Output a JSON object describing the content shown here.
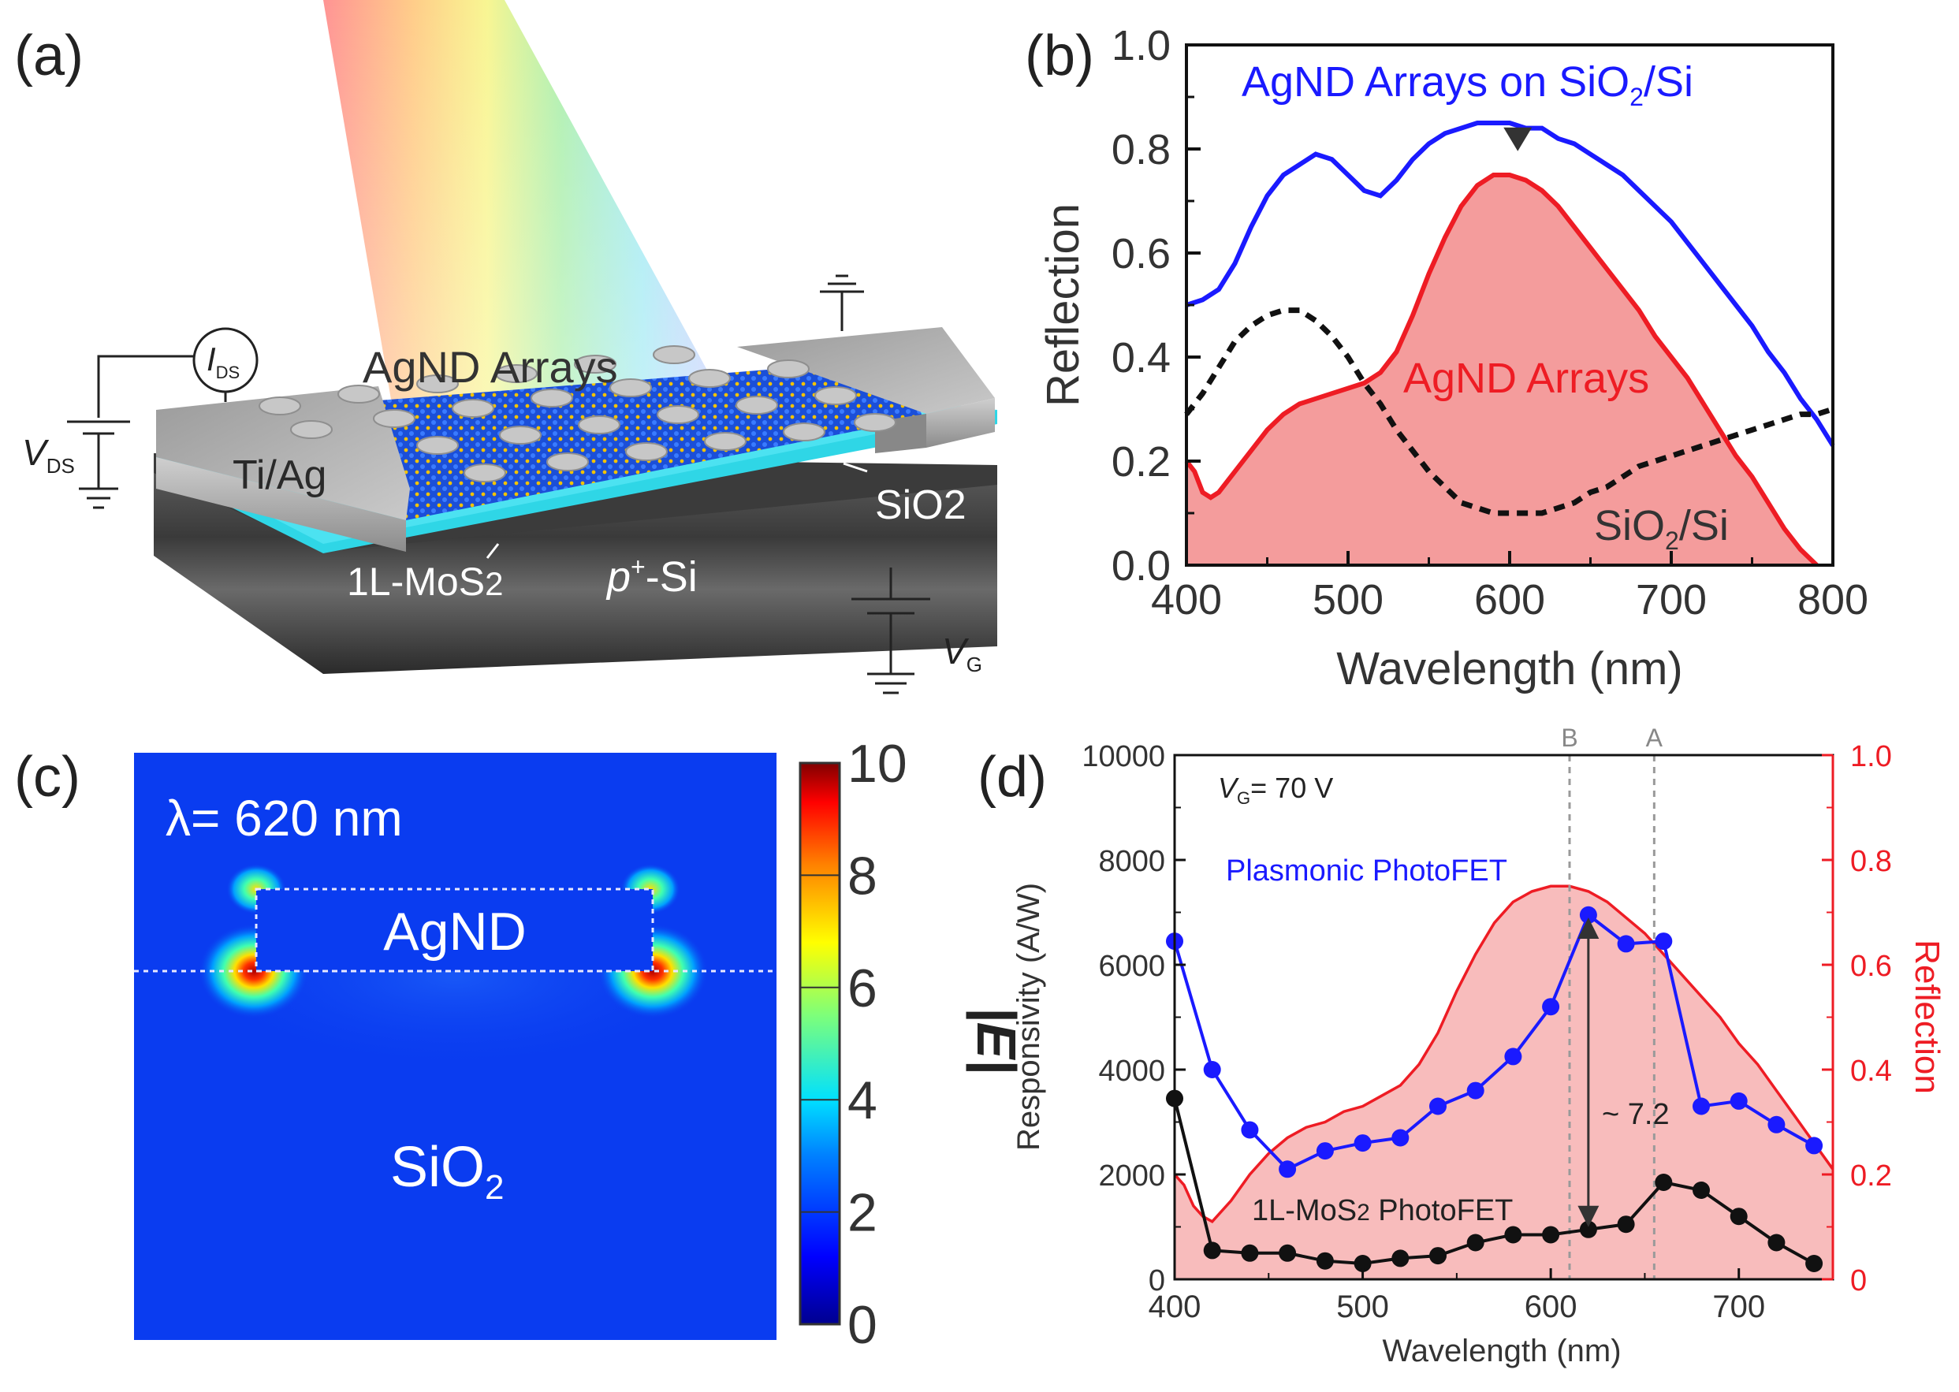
{
  "colors": {
    "blue": "#1a1aff",
    "red": "#ee1c24",
    "red_fill": "#f28b8b",
    "red_fill_light": "#f7b5b5",
    "black": "#111111",
    "cyan": "#2fd6e6",
    "gray_guide": "#9a9a9a"
  },
  "panel_a": {
    "label": "(a)",
    "ag_arrays": "AgND Arrays",
    "ids_label": "I",
    "ids_sub": "DS",
    "vds_label": "V",
    "vds_sub": "DS",
    "tiag": "Ti/Ag",
    "sio2_pre": "SiO",
    "sio2_sub": "2",
    "mos2_pre": "1L-MoS",
    "mos2_sub": "2",
    "psi_p": "p",
    "psi_sup": "+",
    "psi_si": "-Si",
    "vg_label": "V",
    "vg_sub": "G"
  },
  "panel_c": {
    "label": "(c)",
    "lambda_text": "λ= 620 nm",
    "agnd": "AgND",
    "sio2_pre": "SiO",
    "sio2_sub": "2",
    "colorbar_title": "|E|",
    "colorbar_ticks": [
      "0",
      "2",
      "4",
      "6",
      "8",
      "10"
    ]
  },
  "chart_data": [
    {
      "id": "b",
      "panel_label": "(b)",
      "type": "line",
      "xlabel": "Wavelength (nm)",
      "ylabel": "Reflection",
      "xlim": [
        400,
        800
      ],
      "ylim": [
        0.0,
        1.0
      ],
      "xticks": [
        "400",
        "500",
        "600",
        "700",
        "800"
      ],
      "yticks": [
        "0.0",
        "0.2",
        "0.4",
        "0.6",
        "0.8",
        "1.0"
      ],
      "annotations": {
        "blue_pre": "AgND Arrays on SiO",
        "blue_sub": "2",
        "blue_post": "/Si",
        "red": "AgND Arrays",
        "black_pre": "SiO",
        "black_sub": "2",
        "black_post": "/Si"
      },
      "series": [
        {
          "name": "AgND Arrays on SiO2/Si",
          "style": "blue-solid",
          "x": [
            400,
            410,
            420,
            430,
            440,
            450,
            460,
            470,
            480,
            490,
            500,
            510,
            520,
            530,
            540,
            550,
            560,
            570,
            580,
            590,
            600,
            610,
            620,
            630,
            640,
            650,
            660,
            670,
            680,
            690,
            700,
            710,
            720,
            730,
            740,
            750,
            760,
            770,
            780,
            790,
            800
          ],
          "y": [
            0.5,
            0.51,
            0.53,
            0.58,
            0.65,
            0.71,
            0.75,
            0.77,
            0.79,
            0.78,
            0.75,
            0.72,
            0.71,
            0.74,
            0.78,
            0.81,
            0.83,
            0.84,
            0.85,
            0.85,
            0.85,
            0.84,
            0.84,
            0.82,
            0.81,
            0.79,
            0.77,
            0.75,
            0.72,
            0.69,
            0.66,
            0.62,
            0.58,
            0.54,
            0.5,
            0.46,
            0.41,
            0.37,
            0.32,
            0.28,
            0.23
          ]
        },
        {
          "name": "AgND Arrays",
          "style": "red-filled",
          "x": [
            400,
            405,
            410,
            415,
            420,
            430,
            440,
            450,
            460,
            470,
            480,
            490,
            500,
            510,
            520,
            530,
            540,
            550,
            560,
            570,
            580,
            590,
            600,
            610,
            620,
            630,
            640,
            650,
            660,
            670,
            680,
            690,
            700,
            710,
            720,
            730,
            740,
            750,
            760,
            770,
            780,
            790
          ],
          "y": [
            0.2,
            0.18,
            0.14,
            0.13,
            0.14,
            0.18,
            0.22,
            0.26,
            0.29,
            0.31,
            0.32,
            0.33,
            0.34,
            0.35,
            0.37,
            0.41,
            0.48,
            0.56,
            0.63,
            0.69,
            0.73,
            0.75,
            0.75,
            0.74,
            0.72,
            0.69,
            0.65,
            0.61,
            0.57,
            0.53,
            0.49,
            0.44,
            0.4,
            0.36,
            0.31,
            0.26,
            0.21,
            0.17,
            0.12,
            0.07,
            0.03,
            0.0
          ]
        },
        {
          "name": "SiO2/Si",
          "style": "black-dashed",
          "x": [
            400,
            410,
            420,
            430,
            440,
            450,
            460,
            470,
            480,
            490,
            500,
            510,
            520,
            530,
            540,
            550,
            560,
            570,
            580,
            590,
            600,
            610,
            620,
            630,
            640,
            650,
            660,
            670,
            680,
            690,
            700,
            710,
            720,
            730,
            740,
            750,
            760,
            770,
            780,
            790,
            800
          ],
          "y": [
            0.29,
            0.33,
            0.38,
            0.43,
            0.46,
            0.48,
            0.49,
            0.49,
            0.47,
            0.44,
            0.4,
            0.35,
            0.31,
            0.26,
            0.22,
            0.18,
            0.15,
            0.12,
            0.11,
            0.1,
            0.1,
            0.1,
            0.1,
            0.11,
            0.12,
            0.14,
            0.15,
            0.17,
            0.19,
            0.2,
            0.21,
            0.22,
            0.23,
            0.24,
            0.25,
            0.26,
            0.27,
            0.28,
            0.29,
            0.29,
            0.3
          ]
        }
      ],
      "marker": {
        "type": "down-triangle",
        "x": 605,
        "y": 0.82
      }
    },
    {
      "id": "d",
      "panel_label": "(d)",
      "type": "line",
      "xlabel": "Wavelength (nm)",
      "ylabel": "Responsivity (A/W)",
      "ylabel_right": "Reflection",
      "xlim": [
        400,
        750
      ],
      "ylim": [
        0,
        10000
      ],
      "ylim_right": [
        0.0,
        1.0
      ],
      "xticks": [
        "400",
        "500",
        "600",
        "700"
      ],
      "yticks": [
        "0",
        "2000",
        "4000",
        "6000",
        "8000",
        "10000"
      ],
      "yticks_right": [
        "0",
        "0.2",
        "0.4",
        "0.6",
        "0.8",
        "1.0"
      ],
      "annotations": {
        "vg_pre": "V",
        "vg_sub": "G",
        "vg_post": "= 70 V",
        "plasmonic": "Plasmonic PhotoFET",
        "mos2_pre": "1L-MoS",
        "mos2_sub": "2",
        "mos2_post": " PhotoFET",
        "ratio": "~ 7.2",
        "guide_b": "B",
        "guide_a": "A"
      },
      "guides": {
        "B": 610,
        "A": 655
      },
      "ratio_arrow": {
        "x": 620,
        "from": 6700,
        "to": 1200
      },
      "series": [
        {
          "name": "Plasmonic PhotoFET",
          "style": "blue-dots",
          "x": [
            400,
            420,
            440,
            460,
            480,
            500,
            520,
            540,
            560,
            580,
            600,
            620,
            640,
            660,
            680,
            700,
            720,
            740
          ],
          "y": [
            6450,
            4000,
            2850,
            2100,
            2450,
            2600,
            2700,
            3300,
            3600,
            4250,
            5200,
            6950,
            6400,
            6450,
            3300,
            3400,
            2950,
            2550
          ]
        },
        {
          "name": "1L-MoS2 PhotoFET",
          "style": "black-dots",
          "x": [
            400,
            420,
            440,
            460,
            480,
            500,
            520,
            540,
            560,
            580,
            600,
            620,
            640,
            660,
            680,
            700,
            720,
            740
          ],
          "y": [
            3450,
            550,
            500,
            500,
            350,
            300,
            400,
            450,
            700,
            850,
            850,
            950,
            1050,
            1850,
            1700,
            1200,
            700,
            300
          ]
        },
        {
          "name": "Reflection (AgND Arrays)",
          "style": "red-filled",
          "axis": "right",
          "x": [
            400,
            405,
            410,
            415,
            420,
            430,
            440,
            450,
            460,
            470,
            480,
            490,
            500,
            510,
            520,
            530,
            540,
            550,
            560,
            570,
            580,
            590,
            600,
            610,
            620,
            630,
            640,
            650,
            660,
            670,
            680,
            690,
            700,
            710,
            720,
            730,
            740,
            750
          ],
          "y": [
            0.2,
            0.18,
            0.14,
            0.12,
            0.11,
            0.15,
            0.2,
            0.24,
            0.27,
            0.29,
            0.3,
            0.32,
            0.33,
            0.35,
            0.37,
            0.41,
            0.47,
            0.55,
            0.62,
            0.68,
            0.72,
            0.74,
            0.75,
            0.75,
            0.74,
            0.72,
            0.69,
            0.66,
            0.62,
            0.58,
            0.54,
            0.5,
            0.45,
            0.41,
            0.36,
            0.31,
            0.26,
            0.21
          ]
        }
      ]
    }
  ]
}
